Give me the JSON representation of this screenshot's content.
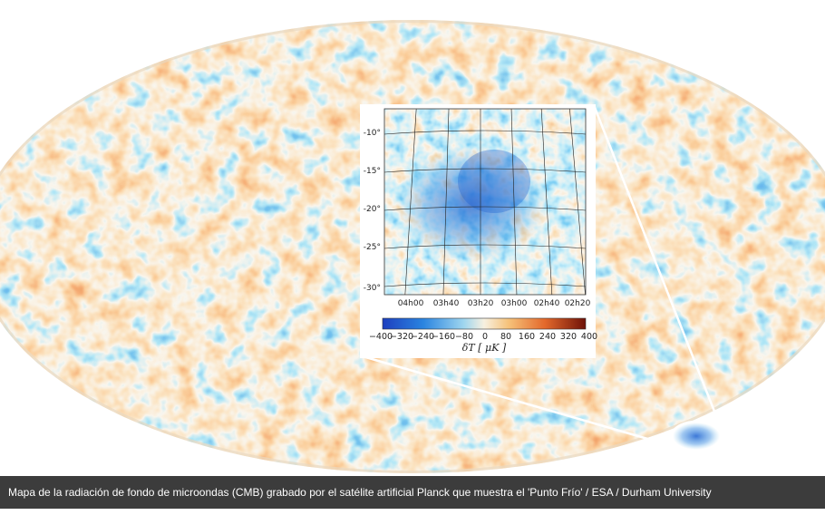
{
  "image": {
    "caption": "Mapa de la radiación de fondo de microondas (CMB) grabado por el satélite artificial Planck que muestra el 'Punto Frío' / ESA / Durham University",
    "colors": {
      "cold": "#1f6fd6",
      "light_cold": "#8fcdea",
      "neutral": "#f4ead8",
      "warm": "#f0a55a",
      "hot": "#d2461b",
      "caption_bg": "#3c3c3c"
    },
    "inset": {
      "y_ticks": [
        "-10°",
        "-15°",
        "-20°",
        "-25°",
        "-30°"
      ],
      "x_ticks": [
        "04h00",
        "03h40",
        "03h20",
        "03h00",
        "02h40",
        "02h20"
      ],
      "colorbar_ticks": [
        "−400",
        "−320",
        "−240",
        "−160",
        "−80",
        "0",
        "80",
        "160",
        "240",
        "320",
        "400"
      ],
      "colorbar_label": "δT [ μK ]"
    }
  }
}
